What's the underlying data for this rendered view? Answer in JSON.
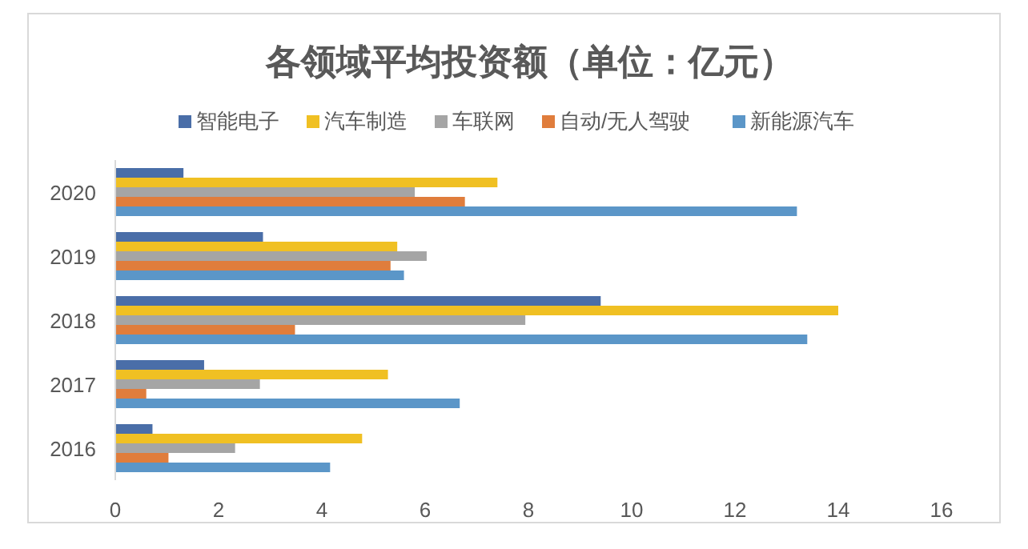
{
  "chart_data": {
    "type": "bar",
    "orientation": "horizontal",
    "title": "各领域平均投资额（单位：亿元）",
    "categories": [
      "2020",
      "2019",
      "2018",
      "2017",
      "2016"
    ],
    "series": [
      {
        "name": "智能电子",
        "color": "#4a6ea8",
        "values": [
          1.32,
          2.86,
          9.4,
          1.72,
          0.72
        ]
      },
      {
        "name": "汽车制造",
        "color": "#f0c023",
        "values": [
          7.4,
          5.46,
          14.0,
          5.28,
          4.78
        ]
      },
      {
        "name": "车联网",
        "color": "#a5a5a5",
        "values": [
          5.8,
          6.03,
          7.94,
          2.8,
          2.32
        ]
      },
      {
        "name": "自动/无人驾驶",
        "color": "#e07d3c",
        "values": [
          6.77,
          5.33,
          3.48,
          0.6,
          1.03
        ]
      },
      {
        "name": "新能源汽车",
        "color": "#5b96c8",
        "values": [
          13.2,
          5.59,
          13.4,
          6.67,
          4.16
        ]
      }
    ],
    "xlim": [
      0,
      16
    ],
    "xticks": [
      0,
      2,
      4,
      6,
      8,
      10,
      12,
      14,
      16
    ],
    "legend": "top"
  }
}
